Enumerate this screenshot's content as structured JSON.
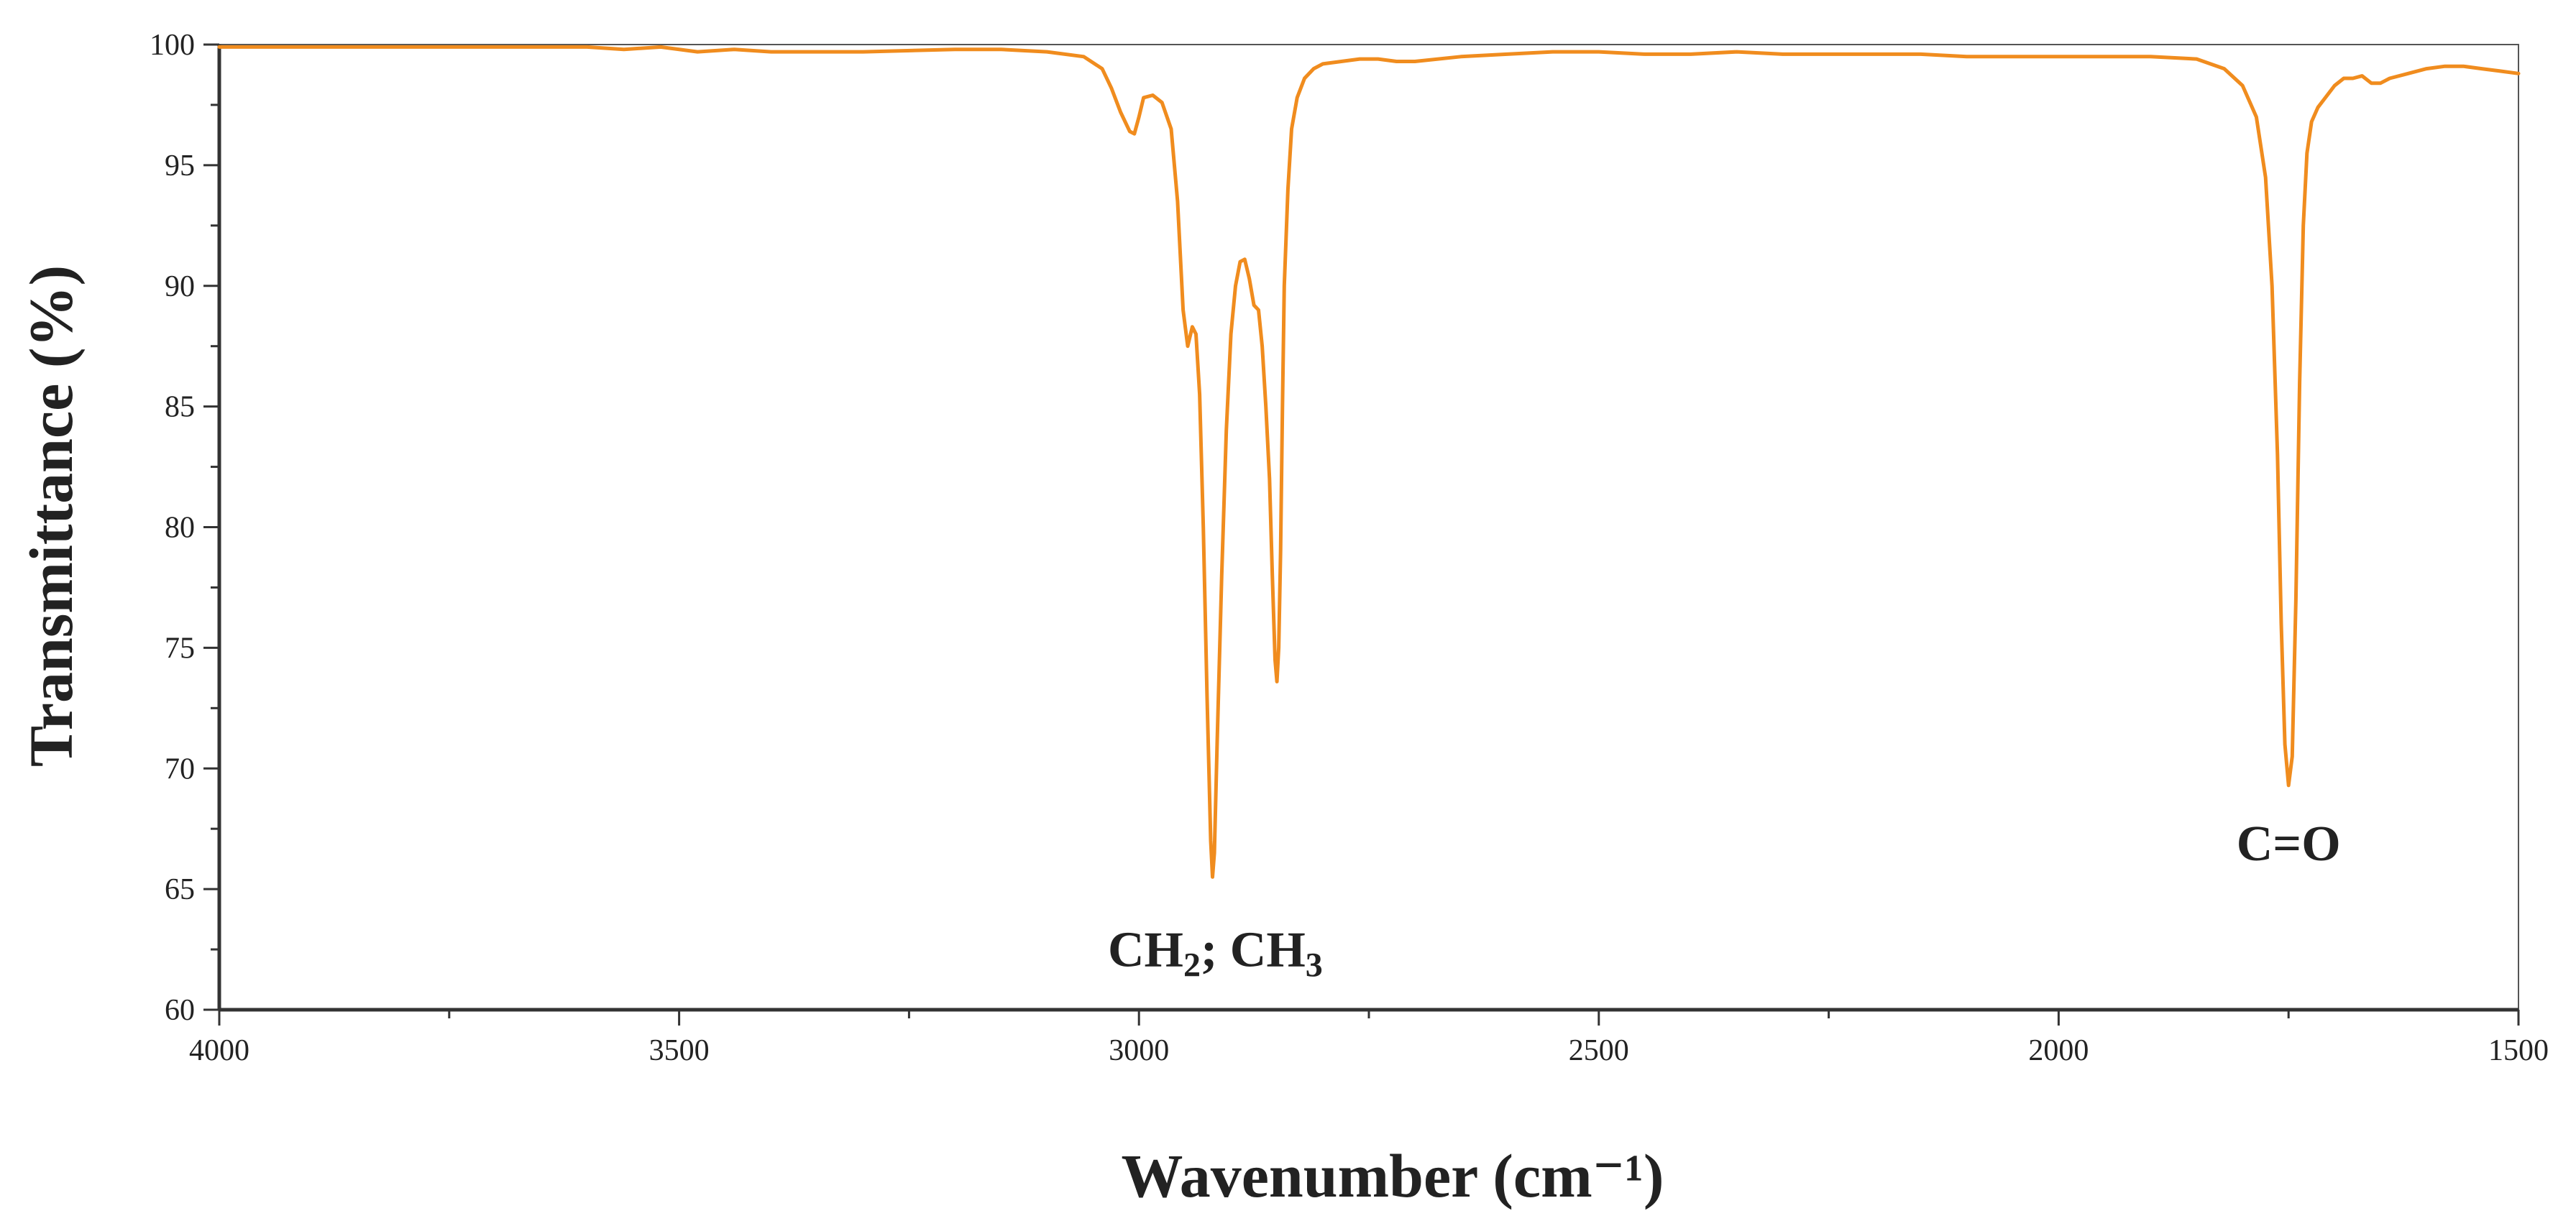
{
  "chart_data": {
    "type": "line",
    "title": "",
    "xlabel": "Wavenumber (cm⁻¹)",
    "ylabel": "Transmittance (%)",
    "xlim": [
      4000,
      1500
    ],
    "ylim": [
      60,
      100
    ],
    "x_reversed": true,
    "x_ticks": [
      4000,
      3500,
      3000,
      2500,
      2000,
      1500
    ],
    "x_tick_labels": [
      "4000",
      "3500",
      "3000",
      "2500",
      "2000",
      "1500"
    ],
    "y_ticks": [
      60,
      65,
      70,
      75,
      80,
      85,
      90,
      95,
      100
    ],
    "y_tick_labels": [
      "60",
      "65",
      "70",
      "75",
      "80",
      "85",
      "90",
      "95",
      "100"
    ],
    "grid": false,
    "line_color": "#F08C1E",
    "series": [
      {
        "x": [
          4000,
          3900,
          3800,
          3700,
          3600,
          3560,
          3520,
          3480,
          3440,
          3400,
          3300,
          3200,
          3150,
          3100,
          3060,
          3040,
          3030,
          3020,
          3010,
          3005,
          3000,
          2995,
          2985,
          2975,
          2965,
          2958,
          2952,
          2947,
          2942,
          2938,
          2934,
          2930,
          2926,
          2922,
          2920,
          2918,
          2915,
          2910,
          2905,
          2900,
          2895,
          2890,
          2885,
          2880,
          2875,
          2870,
          2866,
          2862,
          2858,
          2855,
          2852,
          2850,
          2848,
          2846,
          2844,
          2842,
          2838,
          2834,
          2828,
          2820,
          2810,
          2800,
          2780,
          2760,
          2740,
          2720,
          2700,
          2650,
          2600,
          2550,
          2500,
          2450,
          2400,
          2350,
          2300,
          2250,
          2200,
          2150,
          2100,
          2050,
          2000,
          1950,
          1900,
          1850,
          1820,
          1800,
          1785,
          1775,
          1768,
          1762,
          1758,
          1754,
          1750,
          1746,
          1742,
          1738,
          1734,
          1730,
          1725,
          1718,
          1710,
          1700,
          1690,
          1680,
          1670,
          1660,
          1650,
          1640,
          1620,
          1600,
          1580,
          1560,
          1540,
          1520,
          1500
        ],
        "y": [
          99.9,
          99.9,
          99.9,
          99.9,
          99.9,
          99.8,
          99.9,
          99.7,
          99.8,
          99.7,
          99.7,
          99.8,
          99.8,
          99.7,
          99.5,
          99.0,
          98.2,
          97.2,
          96.4,
          96.3,
          97.0,
          97.8,
          97.9,
          97.6,
          96.5,
          93.5,
          89.0,
          87.5,
          88.3,
          88.0,
          85.5,
          80.0,
          73.0,
          67.0,
          65.5,
          66.5,
          71.0,
          78.0,
          84.0,
          88.0,
          90.0,
          91.0,
          91.1,
          90.3,
          89.2,
          89.0,
          87.5,
          85.0,
          82.0,
          78.0,
          74.5,
          73.6,
          75.0,
          79.0,
          85.0,
          90.0,
          94.0,
          96.5,
          97.8,
          98.6,
          99.0,
          99.2,
          99.3,
          99.4,
          99.4,
          99.3,
          99.3,
          99.5,
          99.6,
          99.7,
          99.7,
          99.6,
          99.6,
          99.7,
          99.6,
          99.6,
          99.6,
          99.6,
          99.5,
          99.5,
          99.5,
          99.5,
          99.5,
          99.4,
          99.0,
          98.3,
          97.0,
          94.5,
          90.0,
          83.0,
          76.0,
          71.0,
          69.3,
          70.5,
          77.0,
          86.0,
          92.5,
          95.5,
          96.8,
          97.4,
          97.8,
          98.3,
          98.6,
          98.6,
          98.7,
          98.4,
          98.4,
          98.6,
          98.8,
          99.0,
          99.1,
          99.1,
          99.0,
          98.9,
          98.8
        ]
      }
    ],
    "annotations": [
      {
        "text": "CH",
        "sub": "2",
        "sep": "; ",
        "text2": "CH",
        "sub2": "3",
        "x": 2917,
        "y": 61.8
      },
      {
        "text": "C=O",
        "x": 1750,
        "y": 66.2
      }
    ]
  }
}
